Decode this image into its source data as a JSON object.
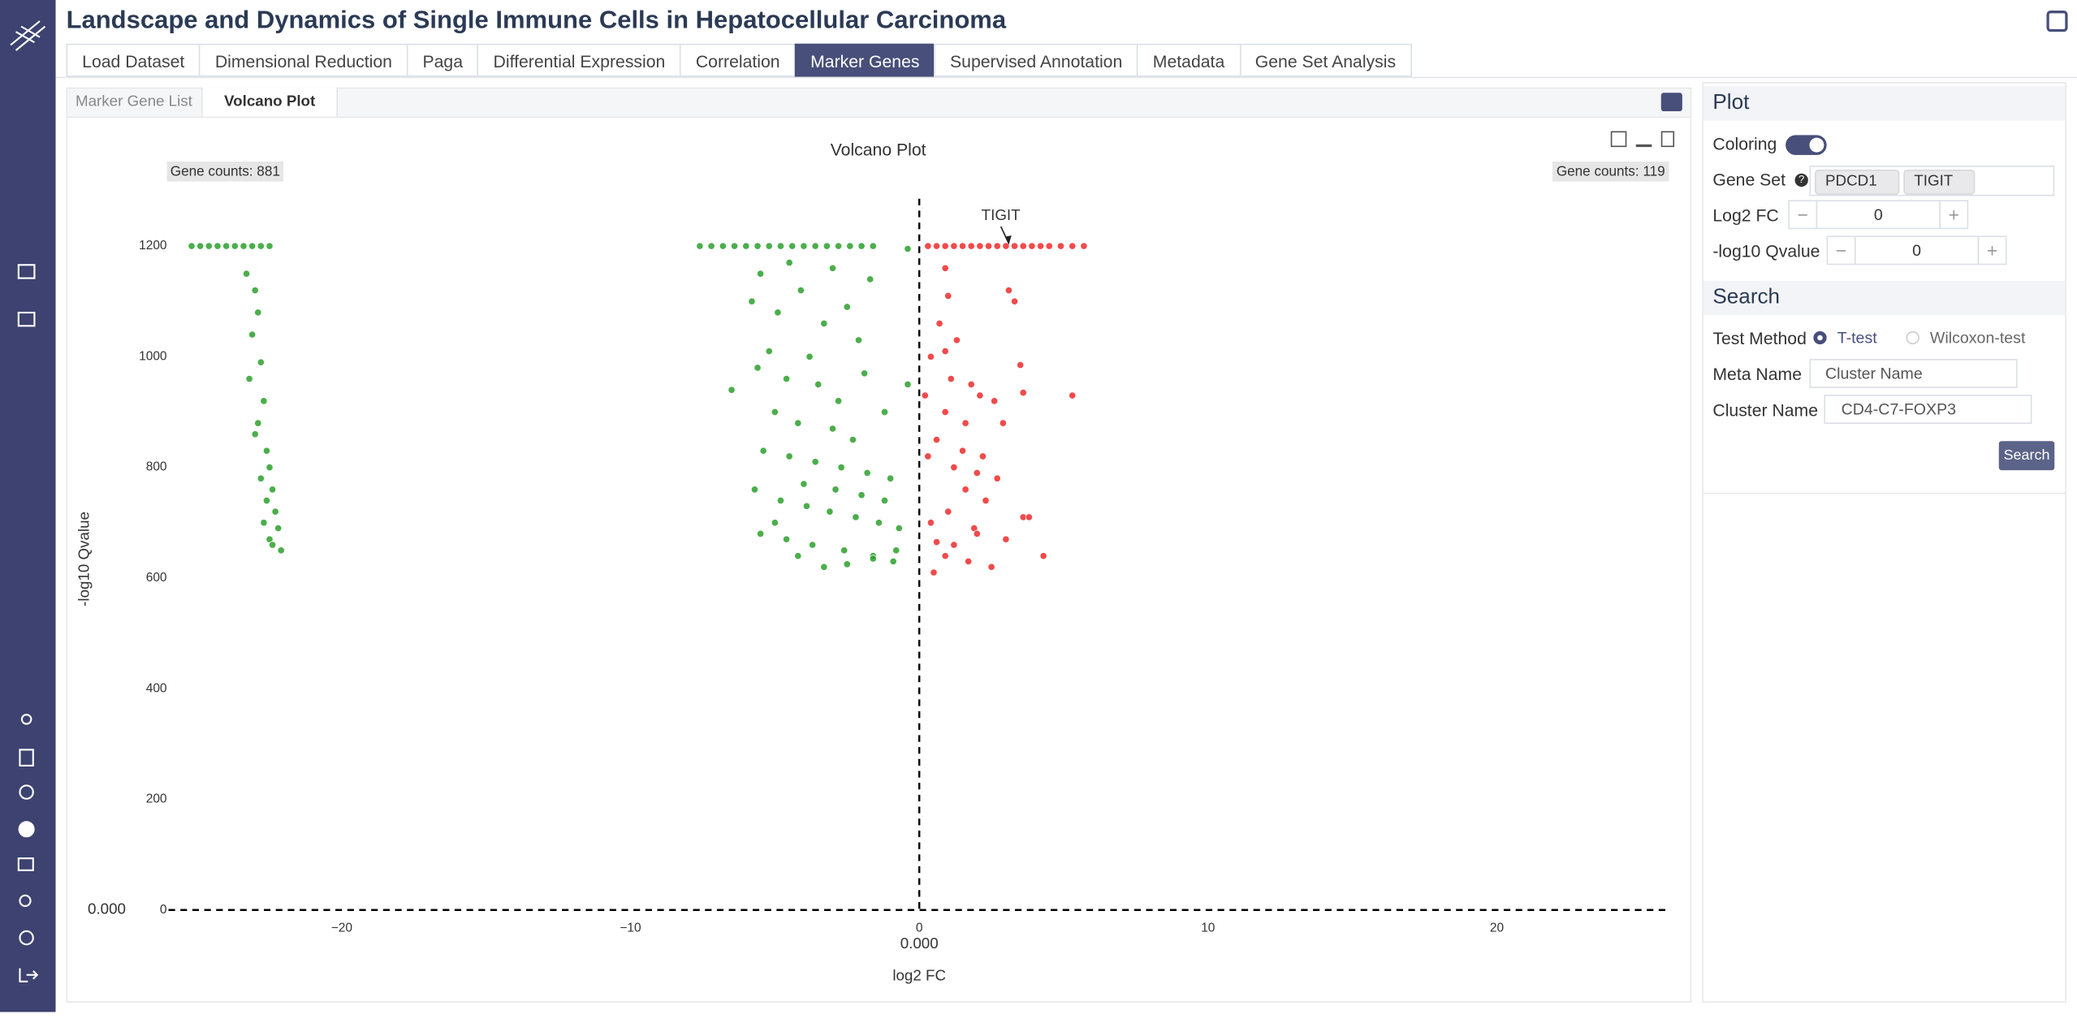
{
  "header": {
    "title": "Landscape and Dynamics of Single Immune Cells in Hepatocellular Carcinoma"
  },
  "tabs": [
    "Load Dataset",
    "Dimensional Reduction",
    "Paga",
    "Differential Expression",
    "Correlation",
    "Marker Genes",
    "Supervised Annotation",
    "Metadata",
    "Gene Set Analysis"
  ],
  "subtabs": [
    "Marker Gene List",
    "Volcano Plot"
  ],
  "chart_data": {
    "type": "scatter",
    "title": "Volcano Plot",
    "xlabel": "log2 FC",
    "ylabel": "-log10 Qvalue",
    "counts": [
      "Gene counts: 881",
      "Gene counts: 119"
    ],
    "xlim": [
      -26,
      26
    ],
    "ylim": [
      0,
      1300
    ],
    "xticks": [
      {
        "value": -20,
        "label": "−20"
      },
      {
        "value": -10,
        "label": "−10"
      },
      0,
      10,
      20
    ],
    "yticks": [
      0,
      200,
      400,
      600,
      800,
      1000,
      1200
    ],
    "thresholds": {
      "x": {
        "value": 0,
        "label": "0.000"
      },
      "y": {
        "value": 0,
        "label": "0.000"
      }
    },
    "annotations": [
      {
        "text": "TIGIT",
        "x": 3.1,
        "y": 1200
      }
    ],
    "series": [
      {
        "color": "#2ca02c",
        "x": [
          -25.2,
          -24.9,
          -24.6,
          -24.3,
          -24.0,
          -23.7,
          -23.4,
          -23.1,
          -22.8,
          -22.5,
          -23.3,
          -23.0,
          -22.9,
          -23.1,
          -22.8,
          -23.2,
          -22.7,
          -22.9,
          -23.0,
          -22.6,
          -22.5,
          -22.8,
          -22.4,
          -22.6,
          -22.3,
          -22.7,
          -22.2,
          -22.5,
          -22.4,
          -22.1,
          -7.6,
          -7.2,
          -6.8,
          -6.4,
          -6.0,
          -5.6,
          -5.2,
          -4.8,
          -4.4,
          -4.0,
          -3.6,
          -3.2,
          -2.8,
          -2.4,
          -2.0,
          -1.6,
          -0.4,
          -5.5,
          -4.5,
          -3.0,
          -5.8,
          -4.9,
          -4.1,
          -3.3,
          -2.5,
          -1.7,
          -6.5,
          -5.2,
          -3.8,
          -2.1,
          -5.6,
          -4.6,
          -3.5,
          -2.8,
          -1.9,
          -1.2,
          -5.0,
          -4.2,
          -3.0,
          -2.3,
          -5.4,
          -4.5,
          -3.6,
          -2.7,
          -1.8,
          -1.0,
          -0.4,
          -5.7,
          -4.8,
          -3.9,
          -3.1,
          -2.2,
          -1.4,
          -0.7,
          -5.5,
          -4.6,
          -3.7,
          -2.6,
          -1.6,
          -0.9,
          -4.2,
          -3.3,
          -2.5,
          -1.6,
          -0.8,
          -5.0,
          -4.0,
          -2.9,
          -2.0,
          -1.2
        ],
        "values": [
          1200,
          1200,
          1200,
          1200,
          1200,
          1200,
          1200,
          1200,
          1200,
          1200,
          1150,
          1120,
          1080,
          1040,
          990,
          960,
          920,
          880,
          860,
          830,
          800,
          780,
          760,
          740,
          720,
          700,
          690,
          670,
          660,
          650,
          1200,
          1200,
          1200,
          1200,
          1200,
          1200,
          1200,
          1200,
          1200,
          1200,
          1200,
          1200,
          1200,
          1200,
          1200,
          1200,
          1195,
          1150,
          1170,
          1160,
          1100,
          1080,
          1120,
          1060,
          1090,
          1140,
          940,
          1010,
          1000,
          1030,
          980,
          960,
          950,
          920,
          970,
          900,
          900,
          880,
          870,
          850,
          830,
          820,
          810,
          800,
          790,
          780,
          950,
          760,
          740,
          730,
          720,
          710,
          700,
          690,
          680,
          670,
          660,
          650,
          640,
          630,
          640,
          620,
          625,
          635,
          650,
          700,
          770,
          760,
          750,
          740
        ]
      },
      {
        "color": "#ee2a2a",
        "x": [
          0.3,
          0.6,
          0.9,
          1.2,
          1.5,
          1.8,
          2.1,
          2.4,
          2.7,
          3.0,
          3.3,
          3.6,
          3.9,
          4.2,
          4.5,
          4.9,
          5.3,
          5.7,
          0.9,
          1.0,
          0.7,
          1.3,
          0.9,
          0.4,
          3.1,
          3.3,
          1.1,
          3.5,
          0.2,
          1.8,
          2.1,
          2.6,
          3.6,
          5.3,
          0.9,
          1.6,
          2.9,
          0.6,
          1.5,
          2.2,
          0.3,
          1.2,
          2.0,
          2.7,
          1.6,
          2.3,
          0.4,
          1.0,
          1.9,
          3.6,
          3.8,
          0.6,
          1.2,
          2.0,
          3.0,
          4.3,
          0.9,
          1.7,
          2.5,
          0.5
        ],
        "values": [
          1200,
          1200,
          1200,
          1200,
          1200,
          1200,
          1200,
          1200,
          1200,
          1200,
          1200,
          1200,
          1200,
          1200,
          1200,
          1200,
          1200,
          1200,
          1160,
          1110,
          1060,
          1030,
          1010,
          1000,
          1120,
          1100,
          960,
          985,
          930,
          950,
          930,
          920,
          935,
          930,
          900,
          880,
          880,
          850,
          830,
          820,
          820,
          800,
          790,
          780,
          760,
          740,
          700,
          720,
          690,
          710,
          710,
          665,
          660,
          680,
          670,
          640,
          640,
          630,
          620,
          610
        ]
      }
    ]
  },
  "panel": {
    "plot": {
      "title": "Plot",
      "coloring_label": "Coloring",
      "gene_set_label": "Gene Set",
      "genes": [
        "PDCD1",
        "TIGIT"
      ],
      "log2fc_label": "Log2 FC",
      "log2fc_value": 0,
      "qvalue_label": "-log10 Qvalue",
      "qvalue_value": 0
    },
    "search": {
      "title": "Search",
      "test_method_label": "Test Method",
      "methods": [
        "T-test",
        "Wilcoxon-test"
      ],
      "meta_name_label": "Meta Name",
      "meta_name_value": "Cluster Name",
      "cluster_name_label": "Cluster Name",
      "cluster_name_value": "CD4-C7-FOXP3",
      "button": "Search"
    }
  }
}
